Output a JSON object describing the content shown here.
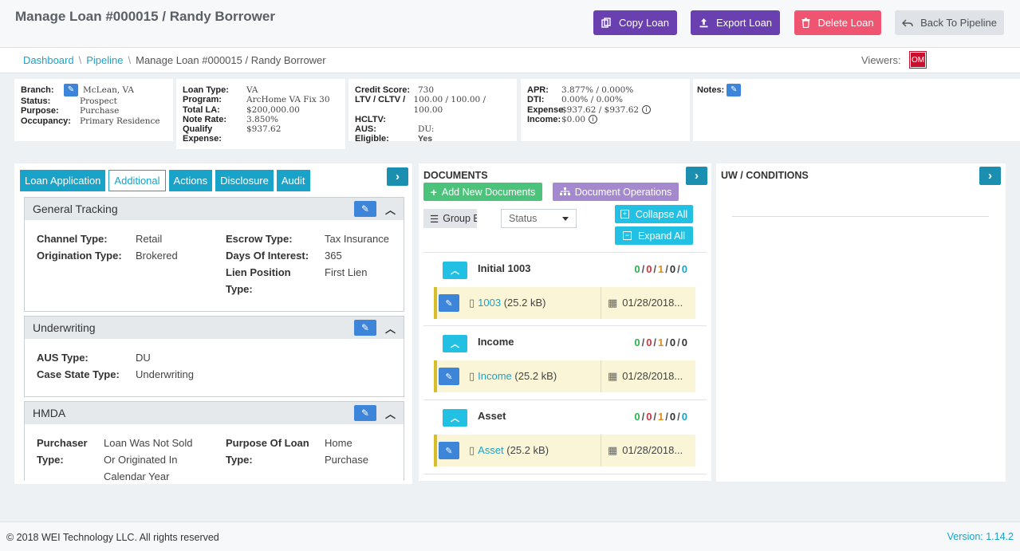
{
  "header": {
    "title": "Manage Loan #000015 / Randy Borrower",
    "buttons": {
      "copy": "Copy Loan",
      "export": "Export Loan",
      "delete": "Delete Loan",
      "back": "Back To Pipeline"
    }
  },
  "breadcrumb": {
    "dashboard": "Dashboard",
    "pipeline": "Pipeline",
    "current": "Manage Loan #000015 / Randy Borrower",
    "sep": "\\"
  },
  "viewers": {
    "label": "Viewers:",
    "badge": "OM",
    "badge_color": "#c8102e"
  },
  "summary": {
    "card1": [
      {
        "k": "Branch:",
        "v": "McLean, VA"
      },
      {
        "k": "Status:",
        "v": "Prospect"
      },
      {
        "k": "Purpose:",
        "v": "Purchase"
      },
      {
        "k": "Occupancy:",
        "v": "Primary Residence"
      }
    ],
    "card2": [
      {
        "k": "Loan Type:",
        "v": "VA"
      },
      {
        "k": "Program:",
        "v": "ArcHome VA Fix 30"
      },
      {
        "k": "Total LA:",
        "v": "$200,000.00"
      },
      {
        "k": "Note Rate:",
        "v": "3.850%"
      },
      {
        "k": "Qualify",
        "v": "$937.62"
      },
      {
        "k": "Expense:",
        "v": ""
      }
    ],
    "card3": [
      {
        "k": "Credit Score:",
        "v": "730"
      },
      {
        "k": "LTV / CLTV /",
        "v": "100.00 / 100.00 / 100.00"
      },
      {
        "k": "HCLTV:",
        "v": ""
      },
      {
        "k": "AUS:",
        "v": "DU:"
      },
      {
        "k": "Eligible:",
        "v": "Yes"
      }
    ],
    "card4": [
      {
        "k": "APR:",
        "v": "3.877% / 0.000%"
      },
      {
        "k": "DTI:",
        "v": "0.00% / 0.00%"
      },
      {
        "k": "Expense",
        "v": "$937.62 / $937.62"
      },
      {
        "k": "Income:",
        "v": "$0.00"
      }
    ],
    "notes_label": "Notes:",
    "info_glyph": "i"
  },
  "left_panel": {
    "tabs": [
      "Loan Application",
      "Additional",
      "Actions",
      "Disclosure",
      "Audit"
    ],
    "active_tab": "Additional",
    "sections": {
      "general": {
        "title": "General Tracking",
        "channel_type_label": "Channel Type:",
        "channel_type": "Retail",
        "origination_type_label": "Origination Type:",
        "origination_type": "Brokered",
        "escrow_type_label": "Escrow Type:",
        "escrow_type": "Tax Insurance",
        "days_of_interest_label": "Days Of Interest:",
        "days_of_interest": "365",
        "lien_position_label_1": "Lien Position",
        "lien_position_label_2": "Type:",
        "lien_position": "First Lien"
      },
      "underwriting": {
        "title": "Underwriting",
        "aus_type_label": "AUS Type:",
        "aus_type": "DU",
        "case_state_label": "Case State Type:",
        "case_state": "Underwriting"
      },
      "hmda": {
        "title": "HMDA",
        "purchaser_label_1": "Purchaser",
        "purchaser_label_2": "Type:",
        "purchaser_1": "Loan Was Not Sold",
        "purchaser_2": "Or Originated In",
        "purchaser_3": "Calendar Year",
        "purpose_label_1": "Purpose Of Loan",
        "purpose_label_2": "Type:",
        "purpose_1": "Home",
        "purpose_2": "Purchase"
      }
    }
  },
  "documents": {
    "title": "DOCUMENTS",
    "add_new": "Add New Documents",
    "operations": "Document Operations",
    "group_by": "Group By Sta",
    "status_select": "Status",
    "collapse_all": "Collapse All",
    "expand_all": "Expand All",
    "groups": [
      {
        "name": "Initial 1003",
        "file": "1003",
        "size": "(25.2 kB)",
        "date": "01/28/2018...",
        "counts": [
          "0",
          "0",
          "1",
          "0",
          "0"
        ]
      },
      {
        "name": "Income",
        "file": "Income",
        "size": "(25.2 kB)",
        "date": "01/28/2018...",
        "counts": [
          "0",
          "0",
          "1",
          "0",
          "0"
        ]
      },
      {
        "name": "Asset",
        "file": "Asset",
        "size": "(25.2 kB)",
        "date": "01/28/2018...",
        "counts": [
          "0",
          "0",
          "1",
          "0",
          "0"
        ]
      }
    ]
  },
  "uw": {
    "title": "UW / CONDITIONS"
  },
  "footer": {
    "copyright": "© 2018 WEI Technology LLC. All rights reserved",
    "version": "Version: 1.14.2"
  },
  "icons": {
    "copy": "copy-icon",
    "export": "upload-icon",
    "delete": "trash-icon",
    "back": "reply-icon",
    "edit": "edit-icon",
    "info": "info-icon",
    "expand": "chevron-right-icon",
    "collapse": "chevron-up-icon",
    "pdf": "pdf-file-icon",
    "calendar": "calendar-icon"
  },
  "colors": {
    "purple": "#6a3fb0",
    "red": "#ef5470",
    "teal": "#1aa3c9",
    "cyan": "#22c1e3",
    "green": "#4cc37a",
    "lavender": "#a589cf",
    "edit_blue": "#3d85d8"
  }
}
